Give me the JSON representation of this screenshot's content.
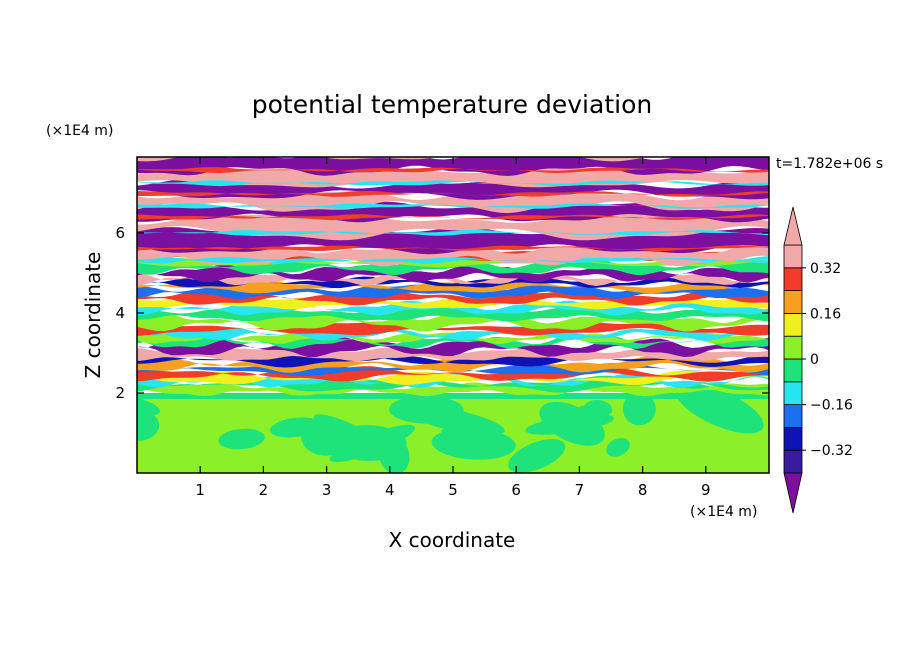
{
  "chart_data": {
    "type": "heatmap",
    "title": "potential temperature deviation",
    "xlabel": "X coordinate",
    "ylabel": "Z coordinate",
    "x_unit": "(×1E4 m)",
    "y_unit": "(×1E4 m)",
    "time_label": "t=1.782e+06 s",
    "xlim": [
      0,
      10
    ],
    "ylim": [
      0,
      7.9
    ],
    "x_ticks": [
      1,
      2,
      3,
      4,
      5,
      6,
      7,
      8,
      9
    ],
    "x_tick_labels": [
      "1",
      "2",
      "3",
      "4",
      "5",
      "6",
      "7",
      "8",
      "9"
    ],
    "y_ticks": [
      2,
      4,
      6
    ],
    "y_tick_labels": [
      "2",
      "4",
      "6"
    ],
    "colorbar": {
      "levels": [
        -0.4,
        -0.32,
        -0.24,
        -0.16,
        -0.08,
        0,
        0.08,
        0.16,
        0.24,
        0.32,
        0.4
      ],
      "labels": [
        {
          "value": 0.32,
          "text": "0.32"
        },
        {
          "value": 0.16,
          "text": "0.16"
        },
        {
          "value": 0,
          "text": "0"
        },
        {
          "value": -0.16,
          "text": "−0.16"
        },
        {
          "value": -0.32,
          "text": "−0.32"
        }
      ],
      "colors": [
        "#7a0fa0",
        "#3a1b9e",
        "#0f12b4",
        "#1e6ef0",
        "#28e6f0",
        "#1ee27a",
        "#8cf028",
        "#f0f01e",
        "#f5a01e",
        "#f03c28",
        "#f0a8a8"
      ],
      "extend": "both"
    },
    "colors": {
      "upper_pink": "#f0a8a8",
      "upper_purple": "#7a0fa0",
      "lower_green": "#8cf028",
      "lower_teal": "#1ee27a"
    }
  }
}
